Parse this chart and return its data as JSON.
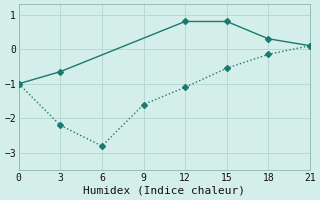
{
  "line1_x": [
    0,
    3,
    12,
    15,
    18,
    21
  ],
  "line1_y": [
    -1.0,
    -0.65,
    0.8,
    0.8,
    0.3,
    0.1
  ],
  "line2_x": [
    0,
    3,
    6,
    9,
    12,
    15,
    18,
    21
  ],
  "line2_y": [
    -1.0,
    -2.2,
    -2.8,
    -1.6,
    -1.1,
    -0.55,
    -0.15,
    0.1
  ],
  "line_color": "#1a7a6e",
  "bg_color": "#d4eee9",
  "grid_color": "#b8d8d3",
  "xlabel": "Humidex (Indice chaleur)",
  "xlim": [
    0,
    21
  ],
  "ylim": [
    -3.5,
    1.3
  ],
  "xticks": [
    0,
    3,
    6,
    9,
    12,
    15,
    18,
    21
  ],
  "yticks": [
    -3,
    -2,
    -1,
    0,
    1
  ],
  "markersize": 3,
  "linewidth": 1.0,
  "xlabel_fontsize": 8,
  "tick_fontsize": 7
}
